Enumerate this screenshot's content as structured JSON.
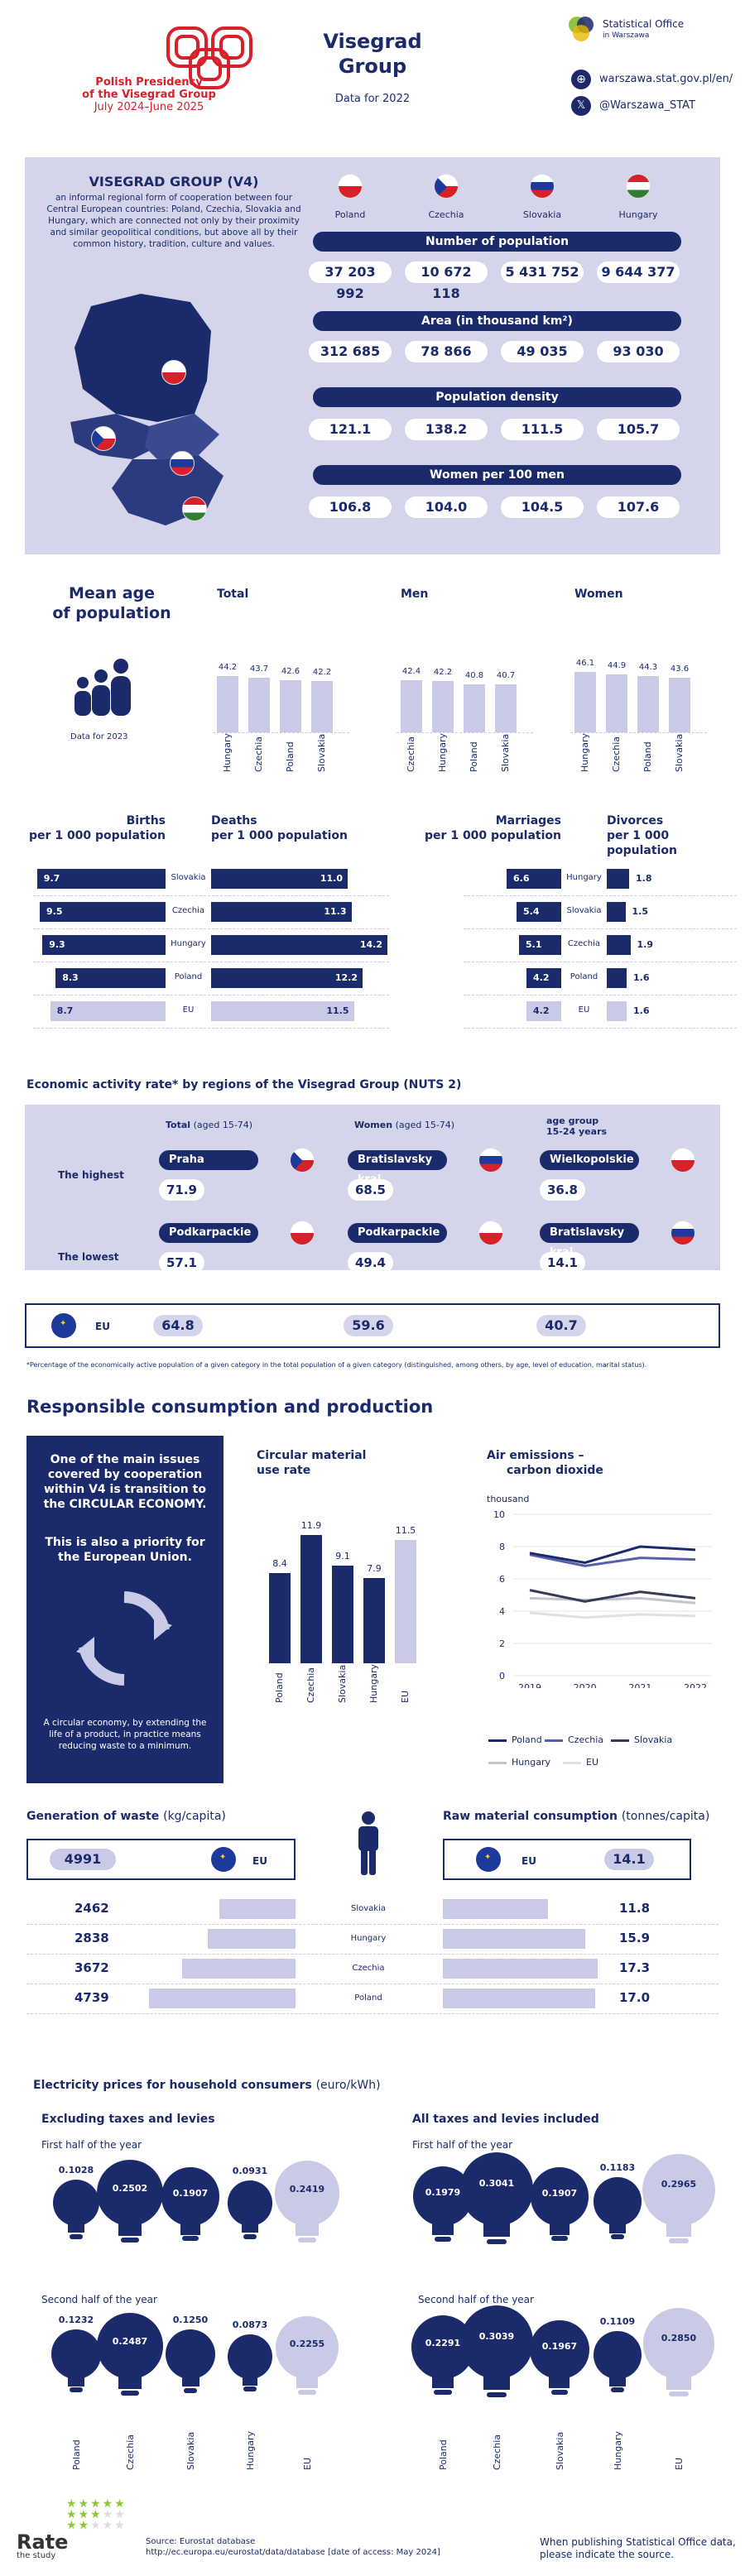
{
  "header": {
    "presidency_line1": "Polish Presidency",
    "presidency_line2": "of the Visegrad Group",
    "presidency_line3": "July 2024–June 2025",
    "title_line1": "Visegrad",
    "title_line2": "Group",
    "subtitle": "Data for 2022",
    "office_line1": "Statistical Office",
    "office_line2": "in Warszawa",
    "website": "warszawa.stat.gov.pl/en/",
    "twitter": "@Warszawa_STAT"
  },
  "v4": {
    "title": "VISEGRAD GROUP (V4)",
    "description": "an informal regional form of cooperation between four Central European countries: Poland, Czechia, Slovakia and Hungary, which are connected not only by their proximity and similar geopolitical conditions, but above all by their common history, tradition, culture and values.",
    "countries": [
      "Poland",
      "Czechia",
      "Slovakia",
      "Hungary"
    ],
    "population_title": "Number of population",
    "population": [
      "37 203 992",
      "10 672 118",
      "5 431 752",
      "9 644 377"
    ],
    "area_title": "Area (in thousand km²)",
    "area": [
      "312 685",
      "78 866",
      "49 035",
      "93 030"
    ],
    "density_title": "Population density",
    "density": [
      "121.1",
      "138.2",
      "111.5",
      "105.7"
    ],
    "women_title": "Women per 100 men",
    "women": [
      "106.8",
      "104.0",
      "104.5",
      "107.6"
    ]
  },
  "mean_age": {
    "title_line1": "Mean age",
    "title_line2": "of population",
    "note": "Data for 2023",
    "groups": [
      {
        "title": "Total",
        "countries": [
          "Hungary",
          "Czechia",
          "Poland",
          "Slovakia"
        ],
        "values": [
          44.2,
          43.7,
          42.6,
          42.2
        ],
        "labels": [
          "44.2",
          "43.7",
          "42.6",
          "42.2"
        ]
      },
      {
        "title": "Men",
        "countries": [
          "Czechia",
          "Hungary",
          "Poland",
          "Slovakia"
        ],
        "values": [
          42.4,
          42.2,
          40.8,
          40.7
        ],
        "labels": [
          "42.4",
          "42.2",
          "40.8",
          "40.7"
        ]
      },
      {
        "title": "Women",
        "countries": [
          "Hungary",
          "Czechia",
          "Poland",
          "Slovakia"
        ],
        "values": [
          46.1,
          44.9,
          44.3,
          43.6
        ],
        "labels": [
          "46.1",
          "44.9",
          "44.3",
          "43.6"
        ]
      }
    ]
  },
  "vital": {
    "births_title_1": "Births",
    "births_title_2": "per 1 000 population",
    "deaths_title_1": "Deaths",
    "deaths_title_2": "per 1 000 population",
    "marriages_title_1": "Marriages",
    "marriages_title_2": "per 1 000 population",
    "divorces_title_1": "Divorces",
    "divorces_title_2": "per 1 000 population",
    "bd_rows": [
      {
        "country": "Slovakia",
        "births": 9.7,
        "births_label": "9.7",
        "deaths": 11.0,
        "deaths_label": "11.0"
      },
      {
        "country": "Czechia",
        "births": 9.5,
        "births_label": "9.5",
        "deaths": 11.3,
        "deaths_label": "11.3"
      },
      {
        "country": "Hungary",
        "births": 9.3,
        "births_label": "9.3",
        "deaths": 14.2,
        "deaths_label": "14.2"
      },
      {
        "country": "Poland",
        "births": 8.3,
        "births_label": "8.3",
        "deaths": 12.2,
        "deaths_label": "12.2"
      },
      {
        "country": "EU",
        "births": 8.7,
        "births_label": "8.7",
        "deaths": 11.5,
        "deaths_label": "11.5"
      }
    ],
    "md_rows": [
      {
        "country": "Hungary",
        "marriages": 6.6,
        "marriages_label": "6.6",
        "divorces": 1.8,
        "divorces_label": "1.8"
      },
      {
        "country": "Slovakia",
        "marriages": 5.4,
        "marriages_label": "5.4",
        "divorces": 1.5,
        "divorces_label": "1.5"
      },
      {
        "country": "Czechia",
        "marriages": 5.1,
        "marriages_label": "5.1",
        "divorces": 1.9,
        "divorces_label": "1.9"
      },
      {
        "country": "Poland",
        "marriages": 4.2,
        "marriages_label": "4.2",
        "divorces": 1.6,
        "divorces_label": "1.6"
      },
      {
        "country": "EU",
        "marriages": 4.2,
        "marriages_label": "4.2",
        "divorces": 1.6,
        "divorces_label": "1.6"
      }
    ]
  },
  "activity": {
    "title": "Economic activity rate* by regions of the Visegrad Group (NUTS 2)",
    "col_total": "Total",
    "col_total_age": "(aged 15-74)",
    "col_women": "Women",
    "col_women_age": "(aged 15-74)",
    "col_age_1": "age group",
    "col_age_2": "15-24 years",
    "highest_label": "The highest",
    "lowest_label": "The lowest",
    "highest": [
      {
        "region": "Praha",
        "value": "71.9",
        "flag": "cz"
      },
      {
        "region": "Bratislavsky kraj",
        "value": "68.5",
        "flag": "sk"
      },
      {
        "region": "Wielkopolskie",
        "value": "36.8",
        "flag": "pl"
      }
    ],
    "lowest": [
      {
        "region": "Podkarpackie",
        "value": "57.1",
        "flag": "pl"
      },
      {
        "region": "Podkarpackie",
        "value": "49.4",
        "flag": "pl"
      },
      {
        "region": "Bratislavsky kraj",
        "value": "14.1",
        "flag": "sk"
      }
    ],
    "eu_label": "EU",
    "eu_values": [
      "64.8",
      "59.6",
      "40.7"
    ],
    "footnote": "*Percentage of the economically active population of a given category in the total population of a given category (distinguished, among others, by age, level of education, marital status)."
  },
  "consumption": {
    "title": "Responsible consumption and production",
    "box_text1": "One of the main issues covered by cooperation within V4 is transition to the CIRCULAR ECONOMY.",
    "box_text2": "This is also a priority for the European Union.",
    "box_text3": "A circular economy, by extending the life of a product, in practice means reducing waste to a minimum.",
    "circular_title_1": "Circular material",
    "circular_title_2": "use rate",
    "air_title_1": "Air emissions –",
    "air_title_2": "carbon dioxide",
    "air_unit": "thousand"
  },
  "chart_data": [
    {
      "type": "bar",
      "title": "Circular material use rate",
      "categories": [
        "Poland",
        "Czechia",
        "Slovakia",
        "Hungary",
        "EU"
      ],
      "values": [
        8.4,
        11.9,
        9.1,
        7.9,
        11.5
      ],
      "labels": [
        "8.4",
        "11.9",
        "9.1",
        "7.9",
        "11.5"
      ]
    },
    {
      "type": "line",
      "title": "Air emissions – carbon dioxide",
      "ylabel": "thousand",
      "x": [
        "2019",
        "2020",
        "2021",
        "2022"
      ],
      "yticks": [
        "0",
        "2",
        "4",
        "6",
        "8",
        "10"
      ],
      "ylim": [
        0,
        10
      ],
      "series": [
        {
          "name": "Poland",
          "values": [
            7.6,
            7.0,
            8.0,
            7.8
          ],
          "color": "#1b2a6b"
        },
        {
          "name": "Czechia",
          "values": [
            7.5,
            6.8,
            7.3,
            7.2
          ],
          "color": "#5560a8"
        },
        {
          "name": "Slovakia",
          "values": [
            5.3,
            4.6,
            5.2,
            4.8
          ],
          "color": "#333b57"
        },
        {
          "name": "Hungary",
          "values": [
            4.8,
            4.7,
            4.8,
            4.5
          ],
          "color": "#c4c4cc"
        },
        {
          "name": "EU",
          "values": [
            3.9,
            3.6,
            3.8,
            3.7
          ],
          "color": "#e0e0e4"
        }
      ]
    }
  ],
  "waste": {
    "waste_title": "Generation of waste",
    "waste_unit": "(kg/capita)",
    "raw_title": "Raw material consumption",
    "raw_unit": "(tonnes/capita)",
    "eu_label": "EU",
    "eu_waste": "4991",
    "eu_raw": "14.1",
    "rows": [
      {
        "country": "Slovakia",
        "waste": 2462,
        "waste_label": "2462",
        "raw": 11.8,
        "raw_label": "11.8"
      },
      {
        "country": "Hungary",
        "waste": 2838,
        "waste_label": "2838",
        "raw": 15.9,
        "raw_label": "15.9"
      },
      {
        "country": "Czechia",
        "waste": 3672,
        "waste_label": "3672",
        "raw": 17.3,
        "raw_label": "17.3"
      },
      {
        "country": "Poland",
        "waste": 4739,
        "waste_label": "4739",
        "raw": 17.0,
        "raw_label": "17.0"
      }
    ]
  },
  "electricity": {
    "title": "Electricity prices for household consumers",
    "unit": "(euro/kWh)",
    "excl_title": "Excluding taxes and levies",
    "incl_title": "All taxes and levies included",
    "first_half": "First half of the year",
    "second_half": "Second half of the year",
    "countries": [
      "Poland",
      "Czechia",
      "Slovakia",
      "Hungary",
      "EU"
    ],
    "excl_h1": [
      "0.1028",
      "0.2502",
      "0.1907",
      "0.0931",
      "0.2419"
    ],
    "excl_h2": [
      "0.1232",
      "0.2487",
      "0.1250",
      "0.0873",
      "0.2255"
    ],
    "incl_h1": [
      "0.1979",
      "0.3041",
      "0.1907",
      "0.1183",
      "0.2965"
    ],
    "incl_h2": [
      "0.2291",
      "0.3039",
      "0.1967",
      "0.1109",
      "0.2850"
    ]
  },
  "footer": {
    "rate_1": "Rate",
    "rate_2": "the study",
    "source_1": "Source: Eurostat database",
    "source_2": "http://ec.europa.eu/eurostat/data/database [date of access: May 2024]",
    "note_1": "When publishing Statistical Office data,",
    "note_2": "please indicate the source."
  },
  "colors": {
    "navy": "#1b2a6b",
    "lavender": "#c9cbe6",
    "panel": "#d4d5ea",
    "red": "#d6202a"
  }
}
